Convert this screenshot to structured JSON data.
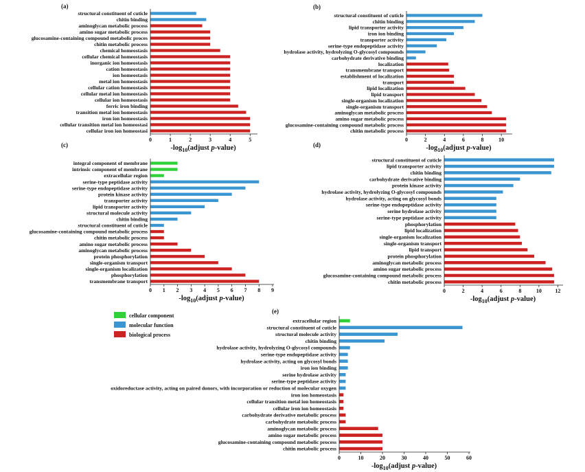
{
  "colors": {
    "cellular component": "#2fd03a",
    "molecular function": "#3a95d0",
    "biological process": "#cc2222"
  },
  "legend": [
    {
      "key": "cellular component",
      "label": "cellular component"
    },
    {
      "key": "molecular function",
      "label": "molecular function"
    },
    {
      "key": "biological process",
      "label": "biological process"
    }
  ],
  "chart_data": [
    {
      "type": "bar",
      "orientation": "horizontal",
      "panel": "(a)",
      "xlabel_pre": "-log",
      "xlabel_sub": "10",
      "xlabel_post": "(adjust ",
      "xlabel_ital": "p",
      "xlabel_end": "-value)",
      "xlim": [
        0,
        5.3
      ],
      "xticks": [
        "0",
        "1",
        "2",
        "3",
        "4",
        "5"
      ],
      "categories": [
        "structural constituent of cuticle",
        "chitin binding",
        "aminoglycan metabolic process",
        "amino sugar metabolic process",
        "glucosamine-containing compound metabolic proces",
        "chitin metabolic process",
        "chemical homeostasis",
        "cellular chemical homeostasis",
        "inorganic ion homeostasis",
        "cation homeostasis",
        "ion homeostasis",
        "metal ion homeostasis",
        "cellular cation homeostasis",
        "cellular metal ion homeostasis",
        "cellular ion homeostasis",
        "ferric iron binding",
        "transition metal ion homeostasis",
        "iron ion homeostasis",
        "cellular transition metal ion homeostasi",
        "cellular iron ion homeostasi"
      ],
      "values": [
        2.3,
        2.8,
        2.6,
        3.0,
        3.0,
        3.0,
        3.5,
        4.0,
        4.0,
        4.0,
        4.0,
        4.0,
        4.0,
        4.0,
        4.0,
        4.4,
        4.8,
        5.0,
        5.0,
        5.0
      ],
      "groups": [
        "molecular function",
        "molecular function",
        "biological process",
        "biological process",
        "biological process",
        "biological process",
        "biological process",
        "biological process",
        "biological process",
        "biological process",
        "biological process",
        "biological process",
        "biological process",
        "biological process",
        "biological process",
        "biological process",
        "biological process",
        "biological process",
        "biological process",
        "biological process"
      ]
    },
    {
      "type": "bar",
      "orientation": "horizontal",
      "panel": "(b)",
      "xlabel_pre": "-log",
      "xlabel_sub": "10",
      "xlabel_post": "(adjust ",
      "xlabel_ital": "p",
      "xlabel_end": "-value)",
      "xlim": [
        0,
        11
      ],
      "xticks": [
        "0",
        "2",
        "4",
        "6",
        "8",
        "10"
      ],
      "categories": [
        "structural constituent of cuticle",
        "chitin binding",
        "lipid transporter activity",
        "iron ion binding",
        "transporter activity",
        "serine-type endopeptidase activity",
        "hydrolase activity, hydrolyzing O-glycosyl compounds",
        "carbohydrate derivative binding",
        "localization",
        "transmembrane transport",
        "establishment of localization",
        "transport",
        "lipid localization",
        "lipid transport",
        "single-organism localization",
        "single-organism transport",
        "aminoglycan metabolic process",
        "amino sugar metabolic process",
        "glucosamine-containing compound metabolic process",
        "chitin metabolic process"
      ],
      "values": [
        8.0,
        7.2,
        6.0,
        5.0,
        4.2,
        3.2,
        2.0,
        1.0,
        4.4,
        4.5,
        5.0,
        5.0,
        6.2,
        7.2,
        7.9,
        8.5,
        9.0,
        10.5,
        10.5,
        10.5
      ],
      "groups": [
        "molecular function",
        "molecular function",
        "molecular function",
        "molecular function",
        "molecular function",
        "molecular function",
        "molecular function",
        "molecular function",
        "biological process",
        "biological process",
        "biological process",
        "biological process",
        "biological process",
        "biological process",
        "biological process",
        "biological process",
        "biological process",
        "biological process",
        "biological process",
        "biological process"
      ]
    },
    {
      "type": "bar",
      "orientation": "horizontal",
      "panel": "(c)",
      "xlabel_pre": "-log",
      "xlabel_sub": "10",
      "xlabel_post": "(adjust ",
      "xlabel_ital": "p",
      "xlabel_end": "-value)",
      "xlim": [
        0,
        9
      ],
      "xticks": [
        "0",
        "1",
        "2",
        "3",
        "4",
        "5",
        "6",
        "7",
        "8",
        "9"
      ],
      "categories": [
        "integral component of membrane",
        "intrinsic component of membrane",
        "extracellular region",
        "serine-type peptidase activity",
        "serine-type endopeptidase activity",
        "protein kinase activity",
        "transporter activity",
        "lipid transporter activity",
        "structural molecule activity",
        "chitin binding",
        "structural constituent of cuticle",
        "glucosamine-containing compound metabolic process",
        "chitin metabolic process",
        "amino sugar metabolic process",
        "aminoglycan metabolic process",
        "protein phosphorylation",
        "single-organism transport",
        "single-organism localization",
        "phosphorylation",
        "transmembrane transport"
      ],
      "values": [
        2.0,
        2.0,
        1.0,
        8.0,
        7.0,
        6.0,
        5.0,
        4.0,
        3.0,
        2.0,
        1.0,
        1.0,
        1.0,
        2.0,
        3.0,
        4.0,
        5.0,
        6.0,
        7.0,
        8.0
      ],
      "groups": [
        "cellular component",
        "cellular component",
        "cellular component",
        "molecular function",
        "molecular function",
        "molecular function",
        "molecular function",
        "molecular function",
        "molecular function",
        "molecular function",
        "molecular function",
        "biological process",
        "biological process",
        "biological process",
        "biological process",
        "biological process",
        "biological process",
        "biological process",
        "biological process",
        "biological process"
      ]
    },
    {
      "type": "bar",
      "orientation": "horizontal",
      "panel": "(d)",
      "xlabel_pre": "-log",
      "xlabel_sub": "10",
      "xlabel_post": "(adjust ",
      "xlabel_ital": "p",
      "xlabel_end": "-value)",
      "xlim": [
        0,
        12.4
      ],
      "xticks": [
        "0",
        "2",
        "4",
        "6",
        "8",
        "10",
        "12"
      ],
      "categories": [
        "structural constituent of cuticle",
        "lipid transporter activity",
        "chitin binding",
        "carbohydrate derivative binding",
        "protein kinase activity",
        "hydrolase activity, hydrolyzing O-glycosyl compounds",
        "hydrolase activity, acting on glycosyl bonds",
        "serine-type endopeptidase activity",
        "serine hydrolase activity",
        "serine-type peptidase activity",
        "phosphorylation",
        "lipid localization",
        "single-organism localization",
        "single-organism transport",
        "lipid transport",
        "protein phosphorylation",
        "aminoglycan metabolic process",
        "amino sugar metabolic process",
        "glucosamine-containing compound metabolic process",
        "chitin metabolic process"
      ],
      "values": [
        11.6,
        11.6,
        11.3,
        8.0,
        7.3,
        6.2,
        5.5,
        5.5,
        5.5,
        5.5,
        7.5,
        7.8,
        8.0,
        8.2,
        8.8,
        9.5,
        10.7,
        11.4,
        11.6,
        11.6
      ],
      "groups": [
        "molecular function",
        "molecular function",
        "molecular function",
        "molecular function",
        "molecular function",
        "molecular function",
        "molecular function",
        "molecular function",
        "molecular function",
        "molecular function",
        "biological process",
        "biological process",
        "biological process",
        "biological process",
        "biological process",
        "biological process",
        "biological process",
        "biological process",
        "biological process",
        "biological process"
      ]
    },
    {
      "type": "bar",
      "orientation": "horizontal",
      "panel": "(e)",
      "xlabel_pre": "-log",
      "xlabel_sub": "10",
      "xlabel_post": "(adjust ",
      "xlabel_ital": "p",
      "xlabel_end": "-value)",
      "xlim": [
        0,
        60
      ],
      "xticks": [
        "0",
        "10",
        "20",
        "30",
        "40",
        "50",
        "60"
      ],
      "categories": [
        "extracellular region",
        "structural constituent of cuticle",
        "structural molecule activity",
        "chitin binding",
        "hydrolase activity, hydrolyzing O-glycosyl compounds",
        "serine-type endopeptidase activity",
        "hydrolase activity, acting on glycosyl bonds",
        "iron ion binding",
        "serine hydrolase activity",
        "serine-type peptidase activity",
        "oxidoreductase activity, acting on paired donors, with incorporation or reduction of molecular oxygen",
        "iron ion homeostasis",
        "cellular transition metal ion homeostasis",
        "cellular iron ion homeostasis",
        "carbohydrate derivative metabolic process",
        "carbohydrate metabolic process",
        "aminoglycan metabolic process",
        "amino sugar metabolic process",
        "glucosamine-containing compound metabolic process",
        "chitin metabolic process"
      ],
      "values": [
        5,
        57,
        27,
        21,
        5,
        4,
        4,
        4,
        3,
        3,
        3,
        2,
        2,
        2,
        3,
        3,
        18,
        20,
        20,
        20
      ],
      "groups": [
        "cellular component",
        "molecular function",
        "molecular function",
        "molecular function",
        "molecular function",
        "molecular function",
        "molecular function",
        "molecular function",
        "molecular function",
        "molecular function",
        "molecular function",
        "biological process",
        "biological process",
        "biological process",
        "biological process",
        "biological process",
        "biological process",
        "biological process",
        "biological process",
        "biological process"
      ]
    }
  ]
}
